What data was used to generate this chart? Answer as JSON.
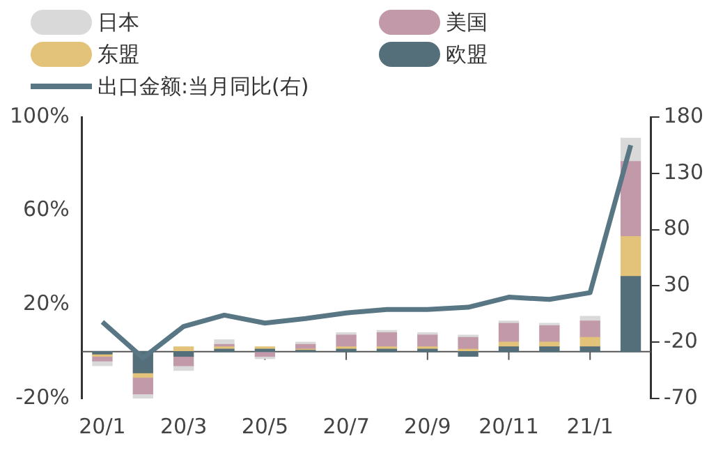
{
  "chart_data": {
    "type": "bar",
    "stacked": true,
    "categories": [
      "20/1",
      null,
      "20/3",
      null,
      "20/5",
      null,
      "20/7",
      null,
      "20/9",
      null,
      "20/11",
      null,
      "21/1",
      null
    ],
    "series": [
      {
        "name": "欧盟",
        "color": "#546e7a",
        "values": [
          -1,
          -9,
          -2,
          1,
          1,
          0.5,
          1,
          1,
          1,
          -2,
          2,
          2,
          2,
          32
        ]
      },
      {
        "name": "东盟",
        "color": "#e3c27a",
        "values": [
          -1,
          -2,
          2,
          1,
          1,
          0.5,
          1,
          1,
          1,
          1,
          2,
          2,
          4,
          17
        ]
      },
      {
        "name": "美国",
        "color": "#c299a8",
        "values": [
          -2,
          -7,
          -4,
          1,
          -2,
          2,
          5,
          6,
          5,
          5,
          8,
          7,
          7,
          32
        ]
      },
      {
        "name": "日本",
        "color": "#d9d9d9",
        "values": [
          -2,
          -2,
          -2,
          2,
          -1,
          1,
          1,
          1,
          1,
          1,
          1,
          1,
          2,
          10
        ]
      },
      {
        "name": "出口金额:当月同比(右)",
        "type": "line",
        "axis": "y2",
        "color": "#587684",
        "values": [
          -2,
          -34,
          -6,
          4,
          -3,
          1,
          6,
          9,
          9,
          11,
          20,
          18,
          24,
          155
        ]
      }
    ],
    "ylim": [
      -20,
      100
    ],
    "yticks": [
      {
        "value": -20,
        "label": "-20%"
      },
      {
        "value": 20,
        "label": "20%"
      },
      {
        "value": 60,
        "label": "60%"
      },
      {
        "value": 100,
        "label": "100%"
      }
    ],
    "y2lim": [
      -70,
      180
    ],
    "y2ticks": [
      -70,
      -20,
      30,
      80,
      130,
      180
    ],
    "legend": "top",
    "marker": "none"
  }
}
